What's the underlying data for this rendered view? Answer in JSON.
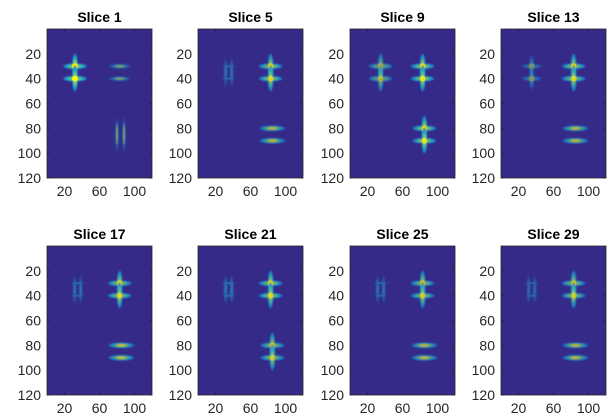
{
  "figure": {
    "background": "#ffffff",
    "panel_background": "#352a87"
  },
  "chart_data": [
    {
      "type": "heatmap",
      "title": "Slice 1",
      "xlim": [
        0,
        120
      ],
      "ylim": [
        120,
        0
      ],
      "xticks": [
        20,
        60,
        100
      ],
      "yticks": [
        20,
        40,
        60,
        80,
        100,
        120
      ],
      "colormap": "parula",
      "blobs": [
        {
          "x": 32,
          "y": 30,
          "orient": "cross",
          "intensity": 1.0
        },
        {
          "x": 32,
          "y": 40,
          "orient": "cross",
          "intensity": 1.0
        },
        {
          "x": 83,
          "y": 30,
          "orient": "h",
          "intensity": 0.65
        },
        {
          "x": 83,
          "y": 40,
          "orient": "h",
          "intensity": 0.65
        },
        {
          "x": 80,
          "y": 85,
          "orient": "v",
          "intensity": 0.6
        },
        {
          "x": 88,
          "y": 85,
          "orient": "v",
          "intensity": 0.6
        }
      ]
    },
    {
      "type": "heatmap",
      "title": "Slice 5",
      "xlim": [
        0,
        120
      ],
      "ylim": [
        120,
        0
      ],
      "xticks": [
        20,
        60,
        100
      ],
      "yticks": [
        20,
        40,
        60,
        80,
        100,
        120
      ],
      "colormap": "parula",
      "blobs": [
        {
          "x": 35,
          "y": 35,
          "orient": "v2",
          "intensity": 0.55
        },
        {
          "x": 83,
          "y": 30,
          "orient": "cross",
          "intensity": 0.85
        },
        {
          "x": 83,
          "y": 40,
          "orient": "cross",
          "intensity": 0.85
        },
        {
          "x": 85,
          "y": 80,
          "orient": "h",
          "intensity": 0.75
        },
        {
          "x": 85,
          "y": 90,
          "orient": "h",
          "intensity": 0.75
        }
      ]
    },
    {
      "type": "heatmap",
      "title": "Slice 9",
      "xlim": [
        0,
        120
      ],
      "ylim": [
        120,
        0
      ],
      "xticks": [
        20,
        60,
        100
      ],
      "yticks": [
        20,
        40,
        60,
        80,
        100,
        120
      ],
      "colormap": "parula",
      "blobs": [
        {
          "x": 35,
          "y": 30,
          "orient": "cross",
          "intensity": 0.7
        },
        {
          "x": 35,
          "y": 40,
          "orient": "cross",
          "intensity": 0.7
        },
        {
          "x": 83,
          "y": 30,
          "orient": "cross",
          "intensity": 0.9
        },
        {
          "x": 83,
          "y": 40,
          "orient": "cross",
          "intensity": 0.9
        },
        {
          "x": 85,
          "y": 80,
          "orient": "cross",
          "intensity": 0.9
        },
        {
          "x": 85,
          "y": 90,
          "orient": "cross",
          "intensity": 0.9
        }
      ]
    },
    {
      "type": "heatmap",
      "title": "Slice 13",
      "xlim": [
        0,
        120
      ],
      "ylim": [
        120,
        0
      ],
      "xticks": [
        20,
        60,
        100
      ],
      "yticks": [
        20,
        40,
        60,
        80,
        100,
        120
      ],
      "colormap": "parula",
      "blobs": [
        {
          "x": 35,
          "y": 30,
          "orient": "cross",
          "intensity": 0.6
        },
        {
          "x": 35,
          "y": 40,
          "orient": "cross",
          "intensity": 0.6
        },
        {
          "x": 83,
          "y": 30,
          "orient": "cross",
          "intensity": 0.85
        },
        {
          "x": 83,
          "y": 40,
          "orient": "cross",
          "intensity": 0.85
        },
        {
          "x": 85,
          "y": 80,
          "orient": "h",
          "intensity": 0.75
        },
        {
          "x": 85,
          "y": 90,
          "orient": "h",
          "intensity": 0.75
        }
      ]
    },
    {
      "type": "heatmap",
      "title": "Slice 17",
      "xlim": [
        0,
        120
      ],
      "ylim": [
        120,
        0
      ],
      "xticks": [
        20,
        60,
        100
      ],
      "yticks": [
        20,
        40,
        60,
        80,
        100,
        120
      ],
      "colormap": "parula",
      "blobs": [
        {
          "x": 35,
          "y": 35,
          "orient": "v2",
          "intensity": 0.55
        },
        {
          "x": 83,
          "y": 30,
          "orient": "cross",
          "intensity": 0.85
        },
        {
          "x": 83,
          "y": 40,
          "orient": "cross",
          "intensity": 0.85
        },
        {
          "x": 85,
          "y": 80,
          "orient": "h",
          "intensity": 0.8
        },
        {
          "x": 85,
          "y": 90,
          "orient": "h",
          "intensity": 0.8
        }
      ]
    },
    {
      "type": "heatmap",
      "title": "Slice 21",
      "xlim": [
        0,
        120
      ],
      "ylim": [
        120,
        0
      ],
      "xticks": [
        20,
        60,
        100
      ],
      "yticks": [
        20,
        40,
        60,
        80,
        100,
        120
      ],
      "colormap": "parula",
      "blobs": [
        {
          "x": 35,
          "y": 35,
          "orient": "v2",
          "intensity": 0.6
        },
        {
          "x": 83,
          "y": 30,
          "orient": "cross",
          "intensity": 0.85
        },
        {
          "x": 83,
          "y": 40,
          "orient": "cross",
          "intensity": 0.85
        },
        {
          "x": 85,
          "y": 80,
          "orient": "cross",
          "intensity": 0.8
        },
        {
          "x": 85,
          "y": 90,
          "orient": "cross",
          "intensity": 0.8
        }
      ]
    },
    {
      "type": "heatmap",
      "title": "Slice 25",
      "xlim": [
        0,
        120
      ],
      "ylim": [
        120,
        0
      ],
      "xticks": [
        20,
        60,
        100
      ],
      "yticks": [
        20,
        40,
        60,
        80,
        100,
        120
      ],
      "colormap": "parula",
      "blobs": [
        {
          "x": 35,
          "y": 35,
          "orient": "v2",
          "intensity": 0.55
        },
        {
          "x": 83,
          "y": 30,
          "orient": "cross",
          "intensity": 0.8
        },
        {
          "x": 83,
          "y": 40,
          "orient": "cross",
          "intensity": 0.8
        },
        {
          "x": 85,
          "y": 80,
          "orient": "h",
          "intensity": 0.75
        },
        {
          "x": 85,
          "y": 90,
          "orient": "h",
          "intensity": 0.75
        }
      ]
    },
    {
      "type": "heatmap",
      "title": "Slice 29",
      "xlim": [
        0,
        120
      ],
      "ylim": [
        120,
        0
      ],
      "xticks": [
        20,
        60,
        100
      ],
      "yticks": [
        20,
        40,
        60,
        80,
        100,
        120
      ],
      "colormap": "parula",
      "blobs": [
        {
          "x": 35,
          "y": 35,
          "orient": "v2",
          "intensity": 0.5
        },
        {
          "x": 83,
          "y": 30,
          "orient": "cross",
          "intensity": 0.8
        },
        {
          "x": 83,
          "y": 40,
          "orient": "cross",
          "intensity": 0.8
        },
        {
          "x": 85,
          "y": 80,
          "orient": "h",
          "intensity": 0.75
        },
        {
          "x": 85,
          "y": 90,
          "orient": "h",
          "intensity": 0.75
        }
      ]
    }
  ]
}
